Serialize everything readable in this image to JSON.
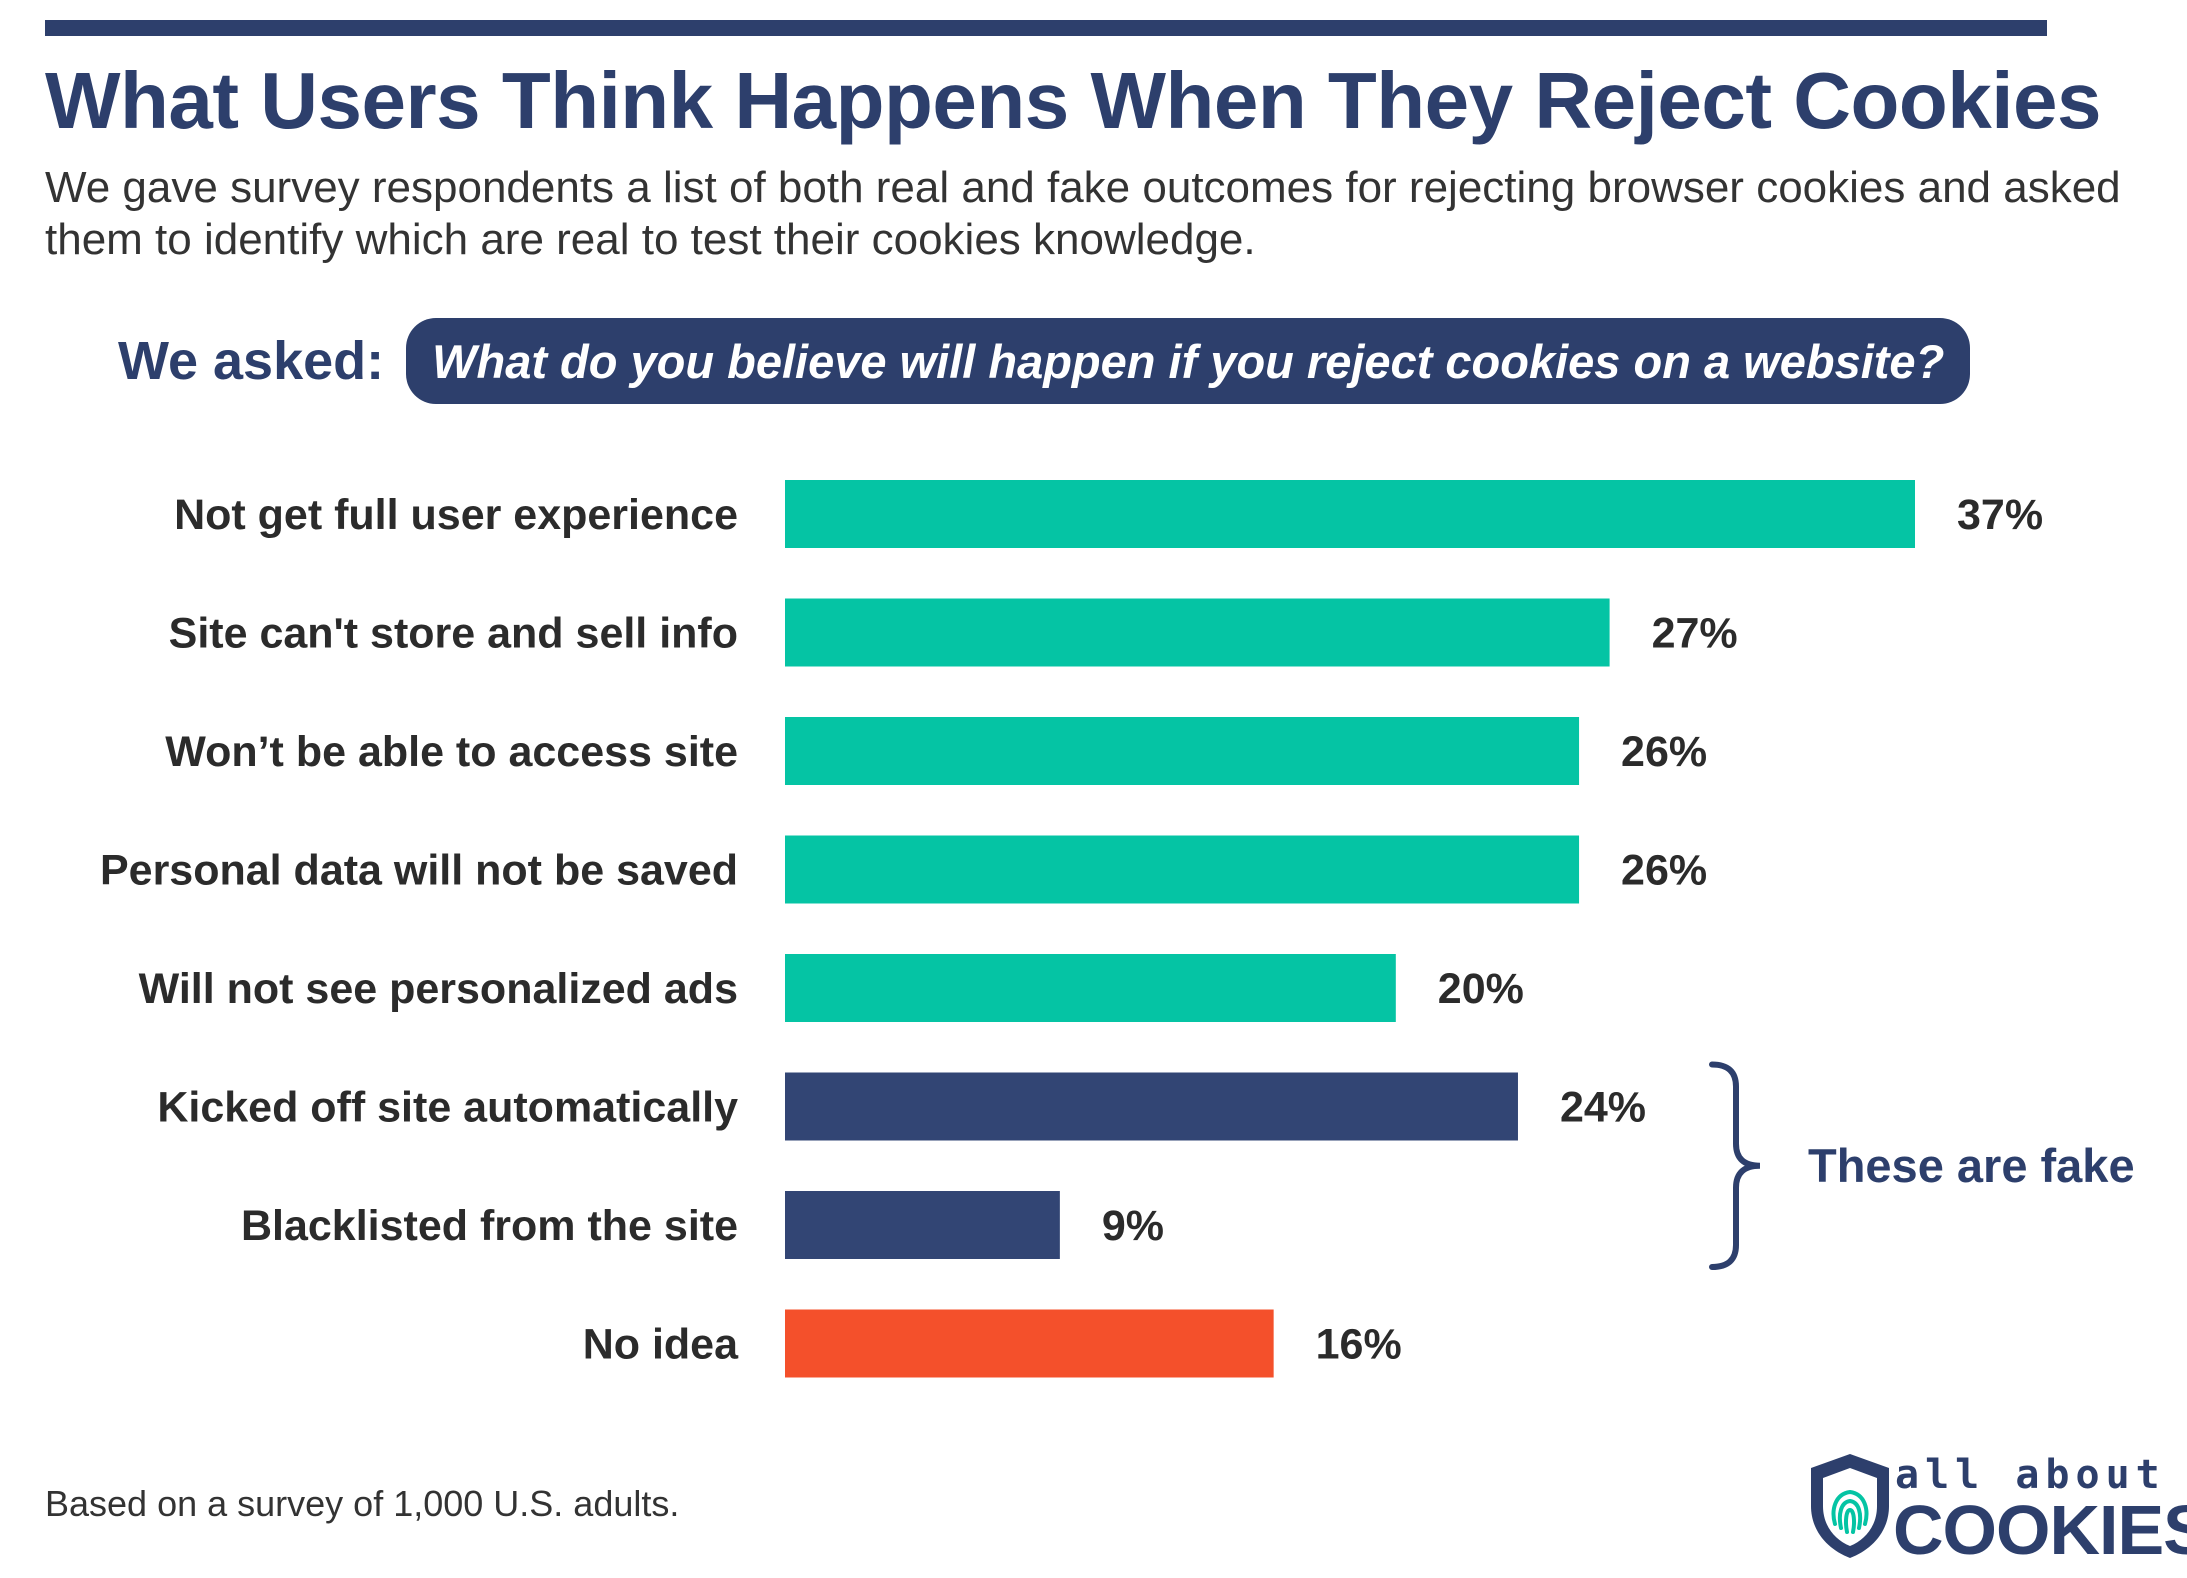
{
  "header": {
    "title": "What Users Think Happens When They Reject Cookies",
    "subtitle": "We gave survey respondents a list of both real and fake outcomes for rejecting browser cookies and asked them to identify which are real to test their cookies knowledge."
  },
  "question": {
    "label": "We asked:",
    "text": "What do you believe will happen if you reject cookies on a website?"
  },
  "chart_data": {
    "type": "bar",
    "orientation": "horizontal",
    "categories": [
      "Not get full user experience",
      "Site can't store and sell info",
      "Won’t be able to access site",
      "Personal data will not be saved",
      "Will not see personalized ads",
      "Kicked off site automatically",
      "Blacklisted from the site",
      "No idea"
    ],
    "values": [
      37,
      27,
      26,
      26,
      20,
      24,
      9,
      16
    ],
    "value_labels": [
      "37%",
      "27%",
      "26%",
      "26%",
      "20%",
      "24%",
      "9%",
      "16%"
    ],
    "unit": "%",
    "groups": [
      "real",
      "real",
      "real",
      "real",
      "real",
      "fake",
      "fake",
      "none"
    ],
    "colors": {
      "real": "#05c4a4",
      "fake": "#324574",
      "none": "#f4502b"
    },
    "annotation": {
      "text": "These are fake",
      "applies_to": [
        "Kicked off site automatically",
        "Blacklisted from the site"
      ]
    },
    "grid": false,
    "legend": "none"
  },
  "footnote": "Based on a survey of 1,000 U.S. adults.",
  "logo": {
    "line1": "all about",
    "line2": "COOKIES",
    "icon": "shield-fingerprint-icon",
    "colors": {
      "navy": "#2d3f6c",
      "teal": "#05c4a4"
    }
  }
}
